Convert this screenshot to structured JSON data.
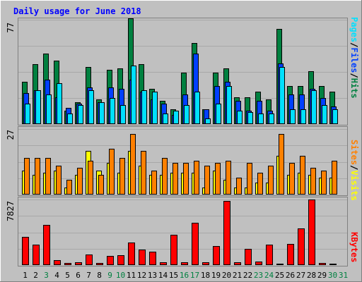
{
  "title": "Daily usage for June 2018",
  "colors": {
    "background": "#C0C0C0",
    "border_light": "#FFFFFF",
    "border_dark": "#808080",
    "panel": "#C0C0C0",
    "title_text": "#0000FF",
    "hits": "#008040",
    "files": "#0040FF",
    "pages": "#00E0FF",
    "visits": "#FFFF00",
    "sites": "#FF8000",
    "kbytes": "#FF0000",
    "weekday_label": "#000000",
    "weekend_label": "#008040"
  },
  "legend_top": {
    "pages": "Pages",
    "files": "Files",
    "hits": "Hits",
    "sep": "/"
  },
  "legend_mid": {
    "sites": "Sites",
    "visits": "Visits",
    "sep": "/"
  },
  "legend_bot": {
    "kbytes": "KBytes"
  },
  "chart_data": {
    "type": "bar",
    "title": "Daily usage for June 2018",
    "categories": [
      "1",
      "2",
      "3",
      "4",
      "5",
      "6",
      "7",
      "8",
      "9",
      "10",
      "11",
      "12",
      "13",
      "14",
      "15",
      "16",
      "17",
      "18",
      "19",
      "20",
      "21",
      "22",
      "23",
      "24",
      "25",
      "26",
      "27",
      "28",
      "29",
      "30",
      "31"
    ],
    "weekend_days": [
      3,
      9,
      10,
      16,
      17,
      23,
      24,
      30,
      31
    ],
    "panels": [
      {
        "id": "top",
        "ymax_label": "77",
        "ymax": 77,
        "series": [
          {
            "name": "Hits",
            "values": [
              31,
              44,
              52,
              47,
              10,
              16,
              42,
              18,
              40,
              41,
              78,
              44,
              26,
              17,
              11,
              38,
              60,
              11,
              38,
              41,
              20,
              20,
              24,
              18,
              70,
              28,
              28,
              39,
              28,
              24,
              0
            ]
          },
          {
            "name": "Files",
            "values": [
              23,
              25,
              33,
              20,
              12,
              15,
              27,
              16,
              27,
              26,
              33,
              24,
              18,
              15,
              7,
              22,
              52,
              11,
              28,
              31,
              17,
              10,
              17,
              10,
              45,
              22,
              22,
              26,
              19,
              13,
              0
            ]
          },
          {
            "name": "Pages",
            "values": [
              15,
              25,
              22,
              30,
              8,
              14,
              25,
              16,
              19,
              14,
              43,
              25,
              24,
              8,
              10,
              14,
              24,
              4,
              15,
              28,
              10,
              9,
              8,
              8,
              42,
              11,
              11,
              25,
              14,
              11,
              0
            ]
          }
        ]
      },
      {
        "id": "mid",
        "ymax_label": "27",
        "ymax": 27,
        "series": [
          {
            "name": "Visits",
            "values": [
              10,
              8,
              9,
              10,
              3,
              8,
              18,
              10,
              13,
              9,
              18,
              12,
              8,
              8,
              9,
              9,
              9,
              3,
              10,
              6,
              3,
              3,
              5,
              5,
              16,
              8,
              9,
              8,
              7,
              7,
              0
            ]
          },
          {
            "name": "Sites",
            "values": [
              15,
              15,
              15,
              12,
              6,
              11,
              14,
              8,
              19,
              15,
              25,
              18,
              10,
              15,
              13,
              13,
              14,
              12,
              13,
              14,
              7,
              13,
              9,
              12,
              25,
              13,
              16,
              11,
              10,
              14,
              0
            ]
          }
        ]
      },
      {
        "id": "bot",
        "ymax_label": "7827",
        "ymax": 7827,
        "series": [
          {
            "name": "KBytes",
            "values": [
              3400,
              2450,
              4800,
              630,
              250,
              320,
              1300,
              250,
              1100,
              1200,
              2700,
              1850,
              1600,
              320,
              3600,
              310,
              5050,
              330,
              2300,
              7700,
              330,
              1950,
              430,
              2400,
              190,
              2500,
              4400,
              7800,
              230,
              130,
              0
            ]
          }
        ]
      }
    ]
  }
}
